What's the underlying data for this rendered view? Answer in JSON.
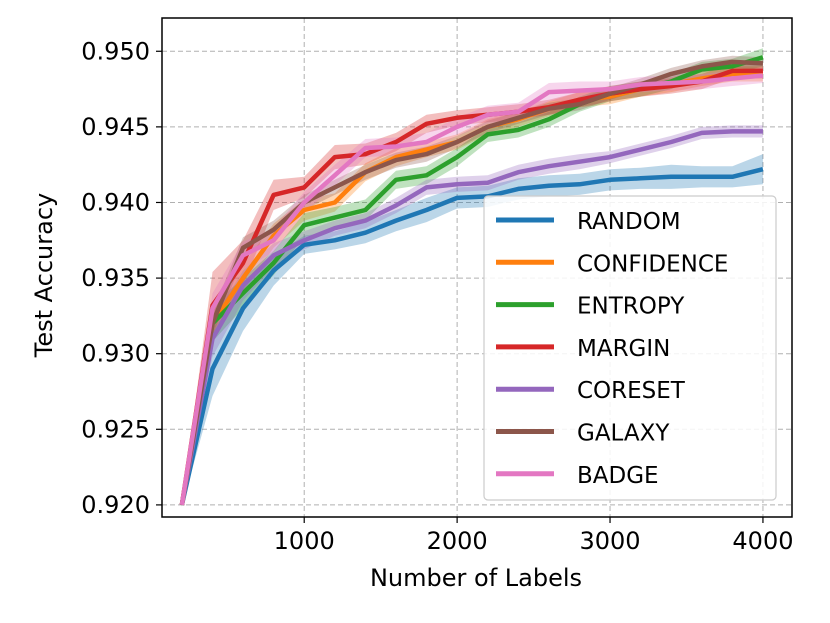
{
  "chart_data": {
    "type": "line",
    "title": "",
    "xlabel": "Number of Labels",
    "ylabel": "Test Accuracy",
    "xlim": [
      70,
      4190
    ],
    "ylim": [
      0.9192,
      0.9522
    ],
    "xticks": [
      1000,
      2000,
      3000,
      4000
    ],
    "xtick_labels": [
      "1000",
      "2000",
      "3000",
      "4000"
    ],
    "yticks": [
      0.92,
      0.925,
      0.93,
      0.935,
      0.94,
      0.945,
      0.95
    ],
    "ytick_labels": [
      "0.920",
      "0.925",
      "0.930",
      "0.935",
      "0.940",
      "0.945",
      "0.950"
    ],
    "grid": true,
    "legend_position": "lower-right",
    "x": [
      200,
      400,
      600,
      800,
      1000,
      1200,
      1400,
      1600,
      1800,
      2000,
      2200,
      2400,
      2600,
      2800,
      3000,
      3200,
      3400,
      3600,
      3800,
      4000
    ],
    "series": [
      {
        "name": "RANDOM",
        "color": "#1f77b4",
        "values": [
          0.92,
          0.929,
          0.933,
          0.9355,
          0.9372,
          0.9375,
          0.938,
          0.9388,
          0.9395,
          0.9403,
          0.9404,
          0.9409,
          0.9411,
          0.9412,
          0.9415,
          0.9416,
          0.9417,
          0.9417,
          0.9417,
          0.9422
        ],
        "band": [
          0.0001,
          0.0018,
          0.0015,
          0.001,
          0.0006,
          0.0006,
          0.0007,
          0.0007,
          0.0008,
          0.0007,
          0.0007,
          0.0007,
          0.0007,
          0.0007,
          0.0007,
          0.0007,
          0.0008,
          0.0007,
          0.0007,
          0.001
        ]
      },
      {
        "name": "CONFIDENCE",
        "color": "#ff7f0e",
        "values": [
          0.92,
          0.932,
          0.935,
          0.9378,
          0.9395,
          0.94,
          0.942,
          0.943,
          0.9435,
          0.944,
          0.945,
          0.9455,
          0.9462,
          0.9468,
          0.947,
          0.9475,
          0.9478,
          0.9482,
          0.9485,
          0.9485
        ],
        "band": [
          0.0001,
          0.001,
          0.0009,
          0.0008,
          0.0007,
          0.0006,
          0.0006,
          0.0006,
          0.0005,
          0.0005,
          0.0005,
          0.0005,
          0.0005,
          0.0005,
          0.0005,
          0.0005,
          0.0005,
          0.0005,
          0.0005,
          0.0005
        ]
      },
      {
        "name": "ENTROPY",
        "color": "#2ca02c",
        "values": [
          0.92,
          0.932,
          0.934,
          0.936,
          0.9385,
          0.939,
          0.9395,
          0.9415,
          0.9418,
          0.943,
          0.9445,
          0.9448,
          0.9455,
          0.9465,
          0.9472,
          0.9475,
          0.948,
          0.9488,
          0.949,
          0.9496
        ],
        "band": [
          0.0001,
          0.0012,
          0.001,
          0.0008,
          0.0008,
          0.0007,
          0.0007,
          0.0006,
          0.0006,
          0.0006,
          0.0005,
          0.0005,
          0.0005,
          0.0005,
          0.0005,
          0.0005,
          0.0005,
          0.0005,
          0.0005,
          0.0006
        ]
      },
      {
        "name": "MARGIN",
        "color": "#d62728",
        "values": [
          0.92,
          0.9332,
          0.936,
          0.9405,
          0.941,
          0.943,
          0.9432,
          0.944,
          0.9452,
          0.9456,
          0.9458,
          0.946,
          0.9463,
          0.9468,
          0.9472,
          0.9475,
          0.9477,
          0.948,
          0.9487,
          0.9487
        ],
        "band": [
          0.0001,
          0.0022,
          0.0015,
          0.001,
          0.0007,
          0.0008,
          0.0007,
          0.0006,
          0.0006,
          0.0005,
          0.0005,
          0.0005,
          0.0005,
          0.0005,
          0.0005,
          0.0005,
          0.0005,
          0.0005,
          0.0005,
          0.0005
        ]
      },
      {
        "name": "CORESET",
        "color": "#9467bd",
        "values": [
          0.92,
          0.931,
          0.9345,
          0.9365,
          0.9375,
          0.9383,
          0.9388,
          0.9398,
          0.941,
          0.9412,
          0.9413,
          0.942,
          0.9424,
          0.9427,
          0.943,
          0.9435,
          0.944,
          0.9446,
          0.9447,
          0.9447
        ],
        "band": [
          0.0001,
          0.0012,
          0.001,
          0.0008,
          0.0006,
          0.0005,
          0.0005,
          0.0005,
          0.0005,
          0.0005,
          0.0005,
          0.0005,
          0.0005,
          0.0005,
          0.0004,
          0.0004,
          0.0004,
          0.0004,
          0.0004,
          0.0004
        ]
      },
      {
        "name": "GALAXY",
        "color": "#8c564b",
        "values": [
          0.92,
          0.932,
          0.937,
          0.9382,
          0.94,
          0.941,
          0.942,
          0.9428,
          0.9432,
          0.944,
          0.945,
          0.9456,
          0.9462,
          0.9465,
          0.9472,
          0.9478,
          0.9485,
          0.949,
          0.9493,
          0.9492
        ],
        "band": [
          0.0001,
          0.0008,
          0.0007,
          0.0006,
          0.0005,
          0.0005,
          0.0005,
          0.0005,
          0.0005,
          0.0004,
          0.0004,
          0.0004,
          0.0004,
          0.0004,
          0.0004,
          0.0004,
          0.0004,
          0.0004,
          0.0004,
          0.0004
        ]
      },
      {
        "name": "BADGE",
        "color": "#e377c2",
        "values": [
          0.92,
          0.933,
          0.9365,
          0.9375,
          0.94,
          0.9418,
          0.9436,
          0.9437,
          0.944,
          0.945,
          0.9458,
          0.946,
          0.9473,
          0.9474,
          0.9475,
          0.9478,
          0.9479,
          0.948,
          0.9482,
          0.9484
        ],
        "band": [
          0.0001,
          0.001,
          0.0009,
          0.0008,
          0.0007,
          0.0007,
          0.0006,
          0.0006,
          0.0006,
          0.0006,
          0.0006,
          0.0006,
          0.0006,
          0.0006,
          0.0005,
          0.0005,
          0.0005,
          0.0005,
          0.0005,
          0.0005
        ]
      }
    ]
  }
}
